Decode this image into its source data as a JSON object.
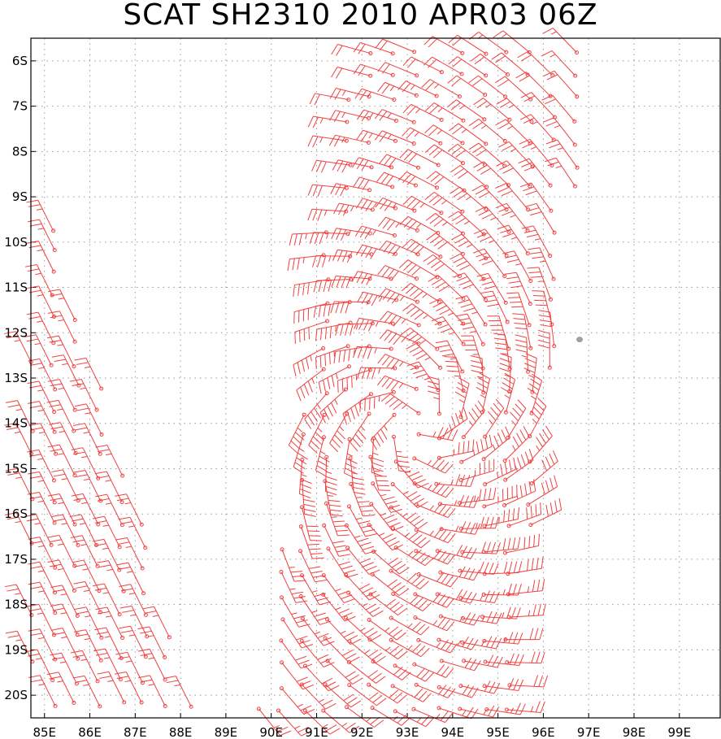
{
  "title": "SCAT SH2310 2010 APR03 06Z",
  "map": {
    "lon_range": [
      84.7,
      99.9
    ],
    "lat_range": [
      -20.5,
      -5.5
    ],
    "lon_ticks": [
      85,
      86,
      87,
      88,
      89,
      90,
      91,
      92,
      93,
      94,
      95,
      96,
      97,
      98,
      99
    ],
    "lon_labels": [
      "85E",
      "86E",
      "87E",
      "88E",
      "89E",
      "90E",
      "91E",
      "92E",
      "93E",
      "94E",
      "95E",
      "96E",
      "97E",
      "98E",
      "99E"
    ],
    "lat_ticks": [
      -6,
      -7,
      -8,
      -9,
      -10,
      -11,
      -12,
      -13,
      -14,
      -15,
      -16,
      -17,
      -18,
      -19,
      -20
    ],
    "lat_labels": [
      "6S",
      "7S",
      "8S",
      "9S",
      "10S",
      "11S",
      "12S",
      "13S",
      "14S",
      "15S",
      "16S",
      "17S",
      "18S",
      "19S",
      "20S"
    ],
    "grid": "dotted",
    "barb_color": "#f04040",
    "land_color": "#a0a0a0",
    "storm_center": {
      "lon": 93.2,
      "lat": -14.0
    },
    "swaths": [
      {
        "name": "west-edge",
        "lon_min_at_top": 84.7,
        "lon_max_at_top": 85.0,
        "lat_top": -9.2,
        "lat_bottom": -20.5,
        "east_lon_at_top": 85.1,
        "east_lon_at_bottom": 88.4
      },
      {
        "name": "east",
        "lat_top": -5.8,
        "lat_bottom": -20.5,
        "west_lon_at_top": 91.8,
        "west_lon_at_bottom": 89.6,
        "east_lon_at_top": 97.1,
        "east_lon_at_bottom": 95.2
      }
    ],
    "island": {
      "lon": 96.8,
      "lat": -12.15
    }
  }
}
